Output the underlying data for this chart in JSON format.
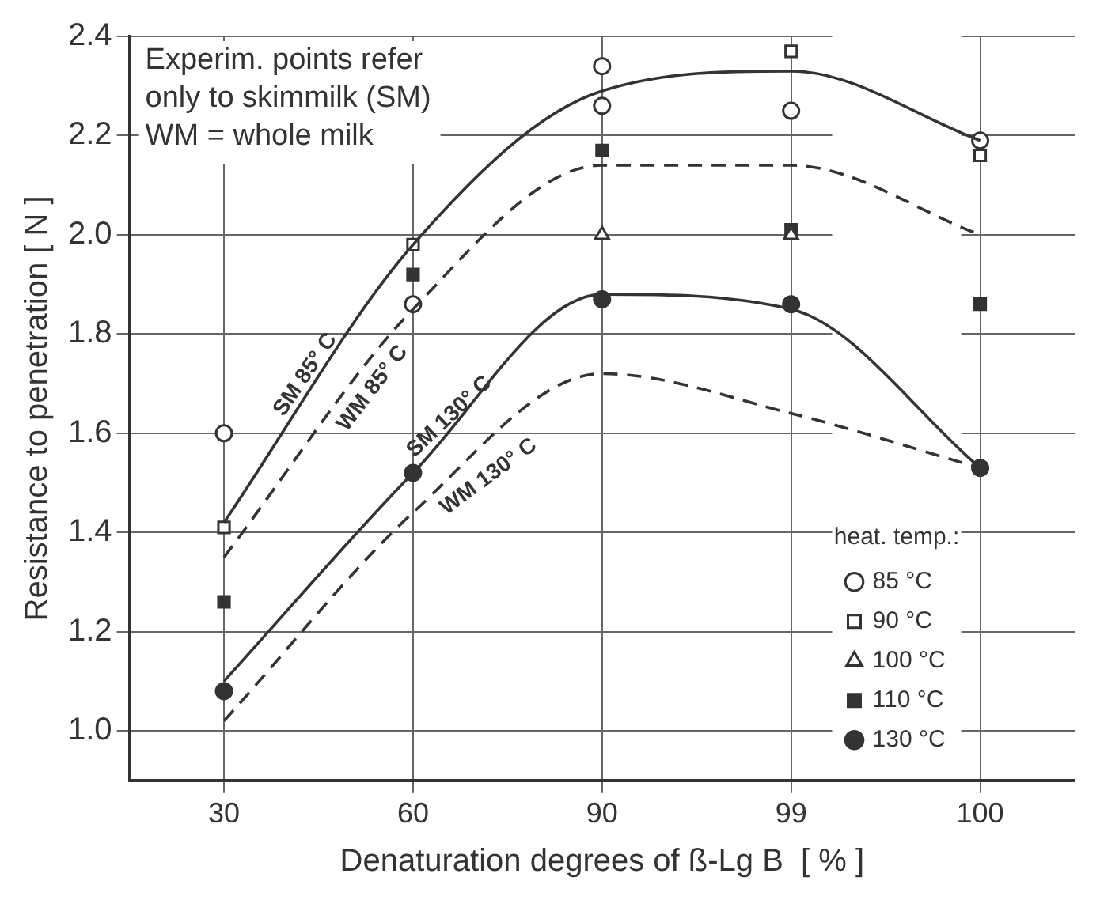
{
  "chart_data": {
    "type": "line",
    "xlabel": "Denaturation degrees of ß-Lg B  [ % ]",
    "ylabel": "Resistance to penetration [ N ]",
    "categories": [
      "30",
      "60",
      "90",
      "99",
      "100"
    ],
    "ylim": [
      0.9,
      2.4
    ],
    "yticks": [
      {
        "value": 1,
        "label": "1.0"
      },
      1.2,
      1.4,
      1.6,
      1.8,
      {
        "value": 2,
        "label": "2.0"
      },
      2.2,
      2.4
    ],
    "grid": true,
    "legend": "bottom right",
    "legend_title": "heat. temp.:",
    "annotations": [
      "Experim. points refer\nonly to skimmilk (SM)\nWM = whole milk"
    ],
    "series": [
      {
        "name": "SM 85° C",
        "line_style": "solid",
        "marker": "none",
        "color": "#333333",
        "values": [
          1.42,
          1.98,
          2.29,
          2.33,
          2.19
        ]
      },
      {
        "name": "WM 85° C",
        "line_style": "dashed",
        "marker": "none",
        "color": "#333333",
        "values": [
          1.35,
          1.85,
          2.14,
          2.14,
          2.0
        ]
      },
      {
        "name": "SM 130° C",
        "line_style": "solid",
        "marker": "none",
        "color": "#333333",
        "values": [
          1.1,
          1.52,
          1.88,
          1.85,
          1.53
        ]
      },
      {
        "name": "WM 130° C",
        "line_style": "dashed",
        "marker": "none",
        "color": "#333333",
        "values": [
          1.02,
          1.44,
          1.72,
          1.64,
          1.53
        ]
      },
      {
        "name": "85 °C",
        "type": "scatter",
        "marker": "circle",
        "color": "#ffffff",
        "x": [
          "30",
          "60",
          "90",
          "90",
          "99",
          "100"
        ],
        "values": [
          1.6,
          1.86,
          2.34,
          2.26,
          2.25,
          2.19
        ]
      },
      {
        "name": "90 °C",
        "type": "scatter",
        "marker": "square",
        "color": "#ffffff",
        "x": [
          "30",
          "60",
          "99",
          "100"
        ],
        "values": [
          1.41,
          1.98,
          2.37,
          2.16
        ]
      },
      {
        "name": "100 °C",
        "type": "scatter",
        "marker": "triangle",
        "color": "#ffffff",
        "x": [
          "90",
          "99"
        ],
        "values": [
          2.0,
          2.0
        ]
      },
      {
        "name": "110 °C",
        "type": "scatter",
        "marker": "square",
        "color": "#333333",
        "x": [
          "30",
          "60",
          "90",
          "99",
          "100"
        ],
        "values": [
          1.26,
          1.92,
          2.17,
          2.01,
          1.86
        ]
      },
      {
        "name": "130 °C",
        "type": "scatter",
        "marker": "circle",
        "color": "#333333",
        "x": [
          "30",
          "60",
          "90",
          "99",
          "100"
        ],
        "values": [
          1.08,
          1.52,
          1.87,
          1.86,
          1.53
        ]
      }
    ]
  }
}
